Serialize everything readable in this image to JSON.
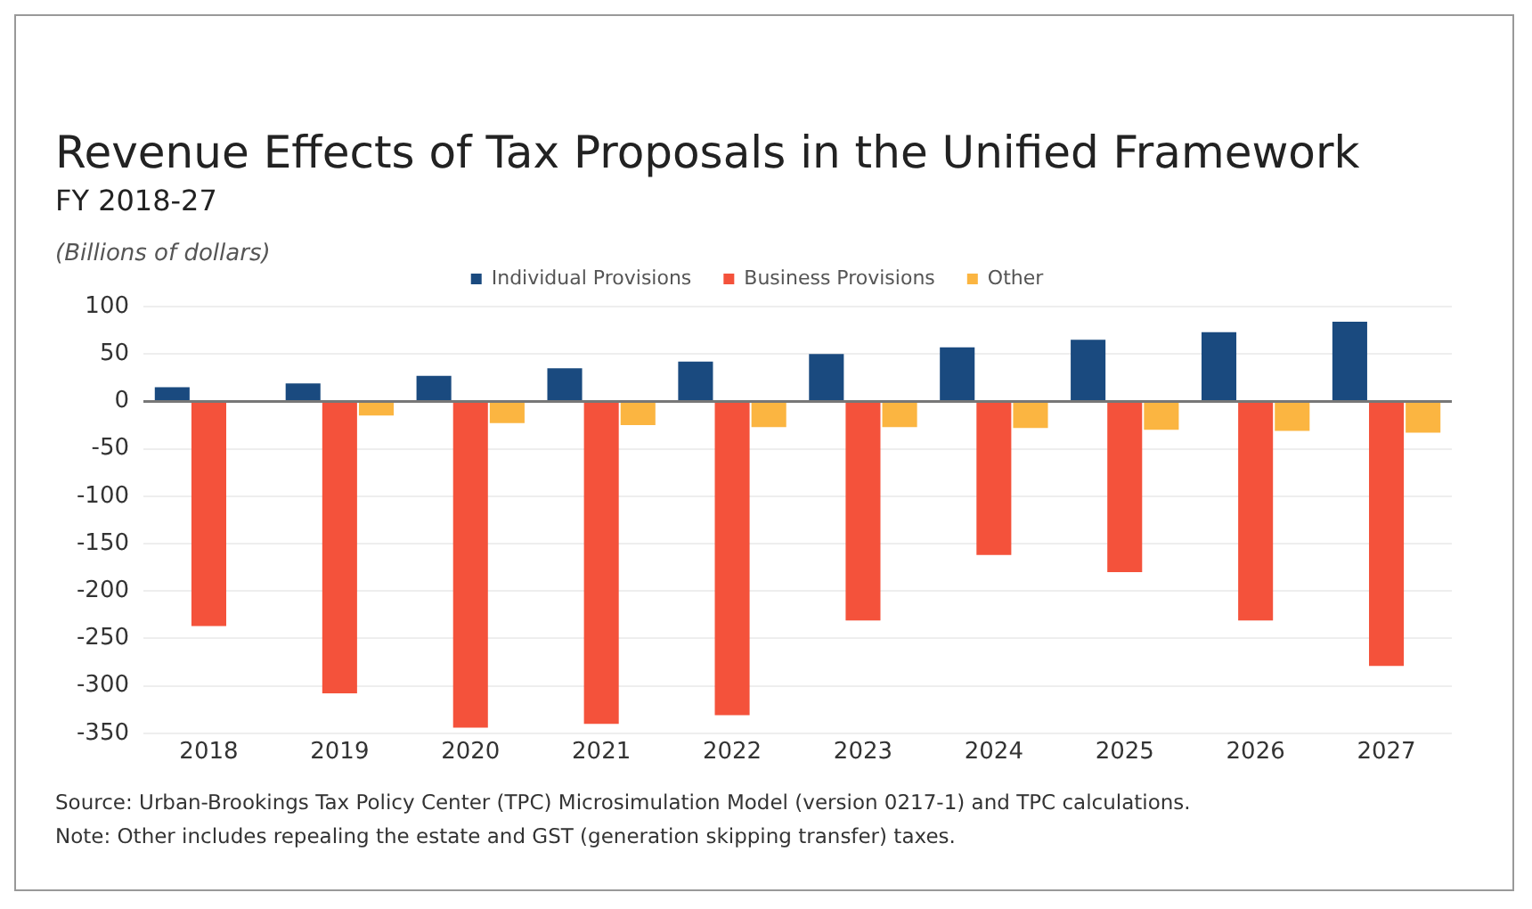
{
  "chart_data": {
    "type": "bar",
    "title": "Revenue Effects of Tax Proposals in the Unified Framework",
    "subtitle": "FY 2018-27",
    "ylabel": "(Billions of dollars)",
    "categories": [
      "2018",
      "2019",
      "2020",
      "2021",
      "2022",
      "2023",
      "2024",
      "2025",
      "2026",
      "2027"
    ],
    "series": [
      {
        "name": "Individual Provisions",
        "color": "#1a4a7f",
        "values": [
          15,
          19,
          27,
          35,
          42,
          50,
          57,
          65,
          73,
          84
        ]
      },
      {
        "name": "Business Provisions",
        "color": "#f4523b",
        "values": [
          -237,
          -308,
          -344,
          -340,
          -331,
          -231,
          -162,
          -180,
          -231,
          -279
        ]
      },
      {
        "name": "Other",
        "color": "#fbb541",
        "values": [
          0,
          -15,
          -23,
          -25,
          -27,
          -27,
          -28,
          -30,
          -31,
          -33
        ]
      }
    ],
    "ylim": [
      -350,
      100
    ],
    "yticks": [
      -350,
      -300,
      -250,
      -200,
      -150,
      -100,
      -50,
      0,
      50,
      100
    ],
    "grid": "y",
    "legend": "top",
    "annotations": [
      "Source: Urban-Brookings Tax Policy Center (TPC) Microsimulation Model (version 0217-1) and TPC calculations.",
      "Note: Other includes repealing the estate and GST (generation skipping transfer) taxes."
    ]
  }
}
